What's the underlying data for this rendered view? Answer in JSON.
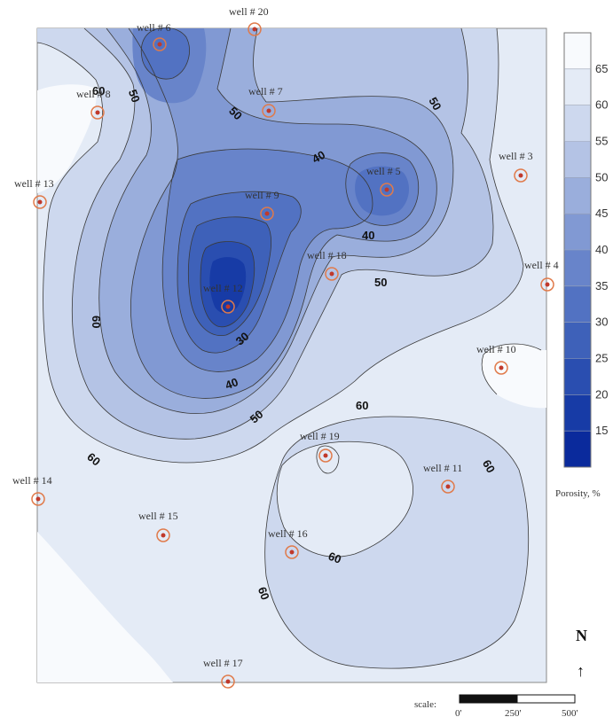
{
  "colors": {
    "ramp": [
      "#0a2a9c",
      "#173ba6",
      "#2a4eb0",
      "#3e61b9",
      "#5272c2",
      "#6884ca",
      "#8199d3",
      "#9aaedc",
      "#b4c3e5",
      "#cdd8ee",
      "#e4ebf6",
      "#f8fafd"
    ],
    "contour_line": "#3a3a3a",
    "well_marker": "#e07a4a",
    "well_dot": "#c0392b"
  },
  "wells": [
    {
      "id": "well-6",
      "label": "well # 6"
    },
    {
      "id": "well-20",
      "label": "well # 20"
    },
    {
      "id": "well-8",
      "label": "well # 8"
    },
    {
      "id": "well-7",
      "label": "well # 7"
    },
    {
      "id": "well-13",
      "label": "well # 13"
    },
    {
      "id": "well-5",
      "label": "well # 5"
    },
    {
      "id": "well-3",
      "label": "well # 3"
    },
    {
      "id": "well-9",
      "label": "well # 9"
    },
    {
      "id": "well-18",
      "label": "well # 18"
    },
    {
      "id": "well-4",
      "label": "well # 4"
    },
    {
      "id": "well-12",
      "label": "well # 12"
    },
    {
      "id": "well-10",
      "label": "well # 10"
    },
    {
      "id": "well-19",
      "label": "well # 19"
    },
    {
      "id": "well-11",
      "label": "well # 11"
    },
    {
      "id": "well-14",
      "label": "well # 14"
    },
    {
      "id": "well-15",
      "label": "well # 15"
    },
    {
      "id": "well-16",
      "label": "well # 16"
    },
    {
      "id": "well-17",
      "label": "well # 17"
    }
  ],
  "contour_labels": [
    "60",
    "50",
    "50",
    "50",
    "40",
    "40",
    "50",
    "60",
    "30",
    "40",
    "50",
    "60",
    "60",
    "60",
    "60",
    "60"
  ],
  "legend": {
    "ticks": [
      "65",
      "60",
      "55",
      "50",
      "45",
      "40",
      "35",
      "30",
      "25",
      "20",
      "15"
    ],
    "title": "Porosity, %"
  },
  "scale": {
    "label": "scale:",
    "ticks": [
      "0'",
      "250'",
      "500'"
    ]
  },
  "north": {
    "letter": "N",
    "arrow": "↑"
  }
}
